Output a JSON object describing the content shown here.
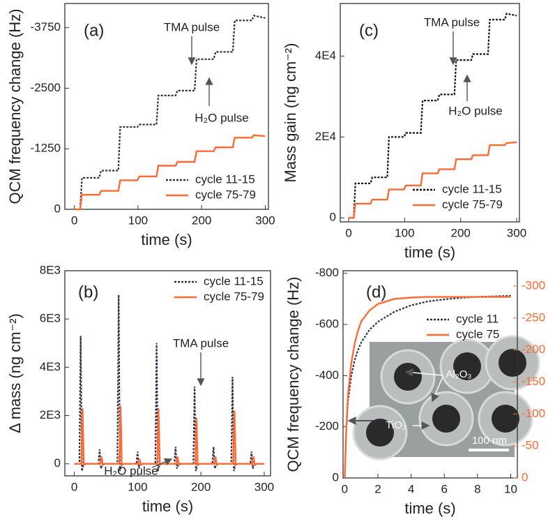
{
  "chart_data": [
    {
      "type": "line",
      "label": "(a)",
      "x_label": "time (s)",
      "y_label": "QCM frequency change (Hz)",
      "xlim": [
        -15,
        305
      ],
      "xticks": [
        0,
        100,
        200,
        300
      ],
      "ylim": [
        0,
        -4250
      ],
      "yticks": [
        0,
        -1250,
        -2500,
        -3750
      ],
      "legend": "lower right",
      "annotations": [
        "TMA pulse",
        "H₂O pulse"
      ],
      "series": [
        {
          "name": "cycle 11-15",
          "color": "#2b3044",
          "line_style": "dotted",
          "x": [
            0,
            9,
            12,
            39,
            42,
            69,
            72,
            99,
            102,
            129,
            132,
            159,
            162,
            189,
            192,
            219,
            222,
            249,
            252,
            279,
            282,
            300
          ],
          "values": [
            0,
            0,
            -650,
            -650,
            -800,
            -800,
            -1700,
            -1700,
            -1750,
            -1750,
            -2350,
            -2350,
            -2450,
            -2450,
            -3100,
            -3100,
            -3250,
            -3250,
            -3900,
            -3900,
            -4000,
            -3950
          ]
        },
        {
          "name": "cycle 75-79",
          "color": "#ff6a33",
          "line_style": "solid",
          "x": [
            0,
            9,
            12,
            39,
            42,
            69,
            72,
            99,
            102,
            129,
            132,
            159,
            162,
            189,
            192,
            219,
            222,
            249,
            252,
            279,
            282,
            300
          ],
          "values": [
            0,
            0,
            -300,
            -300,
            -380,
            -380,
            -600,
            -600,
            -680,
            -680,
            -900,
            -900,
            -980,
            -980,
            -1200,
            -1200,
            -1280,
            -1280,
            -1480,
            -1480,
            -1530,
            -1510
          ]
        }
      ]
    },
    {
      "type": "line",
      "label": "(b)",
      "x_label": "time (s)",
      "y_label": "Δ mass (ng cm⁻²)",
      "xlim": [
        -15,
        310
      ],
      "xticks": [
        0,
        100,
        200,
        300
      ],
      "ylim": [
        -500,
        8000
      ],
      "yticks": [
        0,
        {
          "value": 2000,
          "label": "2E3"
        },
        {
          "value": 4000,
          "label": "4E3"
        },
        {
          "value": 6000,
          "label": "6E3"
        },
        {
          "value": 8000,
          "label": "8E3"
        }
      ],
      "legend": "upper right",
      "annotations": [
        "TMA pulse",
        "H₂O pulse"
      ],
      "series": [
        {
          "name": "cycle 11-15",
          "color": "#2b3044",
          "line_style": "dotted",
          "x": [
            0,
            8,
            10,
            12,
            15,
            38,
            40,
            42,
            45,
            68,
            70,
            72,
            75,
            98,
            100,
            102,
            105,
            128,
            130,
            132,
            135,
            158,
            160,
            162,
            165,
            188,
            190,
            192,
            195,
            218,
            220,
            222,
            225,
            248,
            250,
            252,
            255,
            278,
            280,
            282,
            285,
            300
          ],
          "values": [
            0,
            0,
            5300,
            -300,
            0,
            0,
            600,
            -200,
            0,
            0,
            7000,
            -300,
            0,
            0,
            500,
            -200,
            0,
            0,
            5000,
            -300,
            0,
            0,
            700,
            -200,
            0,
            0,
            3200,
            -300,
            0,
            0,
            700,
            -200,
            0,
            0,
            3600,
            -300,
            0,
            0,
            500,
            -200,
            0,
            0
          ]
        },
        {
          "name": "cycle 75-79",
          "color": "#ff6a33",
          "line_style": "solid",
          "x": [
            0,
            11,
            13,
            15,
            18,
            41,
            43,
            45,
            48,
            71,
            73,
            75,
            78,
            101,
            103,
            105,
            108,
            131,
            133,
            135,
            138,
            161,
            163,
            165,
            168,
            191,
            193,
            195,
            198,
            221,
            223,
            225,
            228,
            251,
            253,
            255,
            258,
            281,
            283,
            285,
            288,
            300
          ],
          "values": [
            0,
            0,
            2300,
            -50,
            0,
            0,
            300,
            -50,
            0,
            0,
            2400,
            -50,
            0,
            0,
            200,
            -50,
            0,
            0,
            2300,
            -50,
            0,
            0,
            300,
            -50,
            0,
            0,
            1900,
            -50,
            0,
            0,
            300,
            -50,
            0,
            0,
            2200,
            -50,
            0,
            0,
            300,
            -50,
            0,
            0
          ]
        }
      ]
    },
    {
      "type": "line",
      "label": "(c)",
      "x_label": "time (s)",
      "y_label": "Mass gain (ng cm⁻²)",
      "xlim": [
        -15,
        305
      ],
      "xticks": [
        0,
        100,
        200,
        300
      ],
      "ylim": [
        -1000,
        53000
      ],
      "yticks": [
        0,
        {
          "value": 20000,
          "label": "2E4"
        },
        {
          "value": 40000,
          "label": "4E4"
        }
      ],
      "legend": "lower right",
      "annotations": [
        "TMA pulse",
        "H₂O pulse"
      ],
      "series": [
        {
          "name": "cycle 11-15",
          "color": "#111111",
          "line_style": "dotted",
          "x": [
            0,
            9,
            12,
            39,
            42,
            69,
            72,
            99,
            102,
            129,
            132,
            159,
            162,
            189,
            192,
            219,
            222,
            249,
            252,
            279,
            282,
            300
          ],
          "values": [
            0,
            0,
            8500,
            8500,
            10000,
            10000,
            20000,
            20000,
            21000,
            21000,
            29000,
            29000,
            30500,
            30500,
            39000,
            39000,
            40500,
            40500,
            49000,
            49000,
            50500,
            50000
          ]
        },
        {
          "name": "cycle 75-79",
          "color": "#ff6a33",
          "line_style": "solid",
          "x": [
            0,
            9,
            12,
            39,
            42,
            69,
            72,
            99,
            102,
            129,
            132,
            159,
            162,
            189,
            192,
            219,
            222,
            249,
            252,
            279,
            282,
            300
          ],
          "values": [
            0,
            0,
            3500,
            3500,
            4500,
            4500,
            7000,
            7000,
            8000,
            8000,
            11000,
            11000,
            12000,
            12000,
            14500,
            14500,
            15500,
            15500,
            18000,
            18000,
            18500,
            18700
          ]
        }
      ]
    },
    {
      "type": "line",
      "label": "(d)",
      "x_label": "time (s)",
      "y_label": "QCM frequency change (Hz)",
      "xlim": [
        -0.1,
        10.4
      ],
      "xticks": [
        0,
        2,
        4,
        6,
        8,
        10
      ],
      "ylim": [
        0,
        -810
      ],
      "yticks": [
        0,
        -200,
        -400,
        -600,
        -800
      ],
      "y2lim": [
        0,
        -324
      ],
      "y2ticks": [
        0,
        -50,
        -100,
        -150,
        -200,
        -250,
        -300
      ],
      "y2_color": "#ff6a33",
      "legend": "right",
      "annotations": [
        "Al₂O₃",
        "TiO₂",
        "100 nm"
      ],
      "series": [
        {
          "name": "cycle 11",
          "color": "#2b3044",
          "line_style": "dotted",
          "x": [
            0,
            0.1,
            0.2,
            0.4,
            0.6,
            0.8,
            1,
            1.5,
            2,
            3,
            4,
            5,
            6,
            7,
            8,
            9,
            10
          ],
          "values": [
            0,
            -200,
            -300,
            -400,
            -460,
            -500,
            -530,
            -580,
            -610,
            -650,
            -675,
            -690,
            -698,
            -704,
            -708,
            -710,
            -712
          ]
        },
        {
          "name": "cycle 75",
          "color": "#ff6a33",
          "line_style": "solid",
          "axis": "y2",
          "x": [
            0,
            0.1,
            0.2,
            0.4,
            0.6,
            0.8,
            1,
            1.5,
            2,
            3,
            4,
            5,
            6,
            7,
            8,
            9,
            10
          ],
          "values": [
            0,
            -80,
            -130,
            -180,
            -210,
            -230,
            -245,
            -262,
            -272,
            -280,
            -282,
            -283,
            -283,
            -283,
            -283,
            -283,
            -283
          ]
        }
      ]
    }
  ]
}
